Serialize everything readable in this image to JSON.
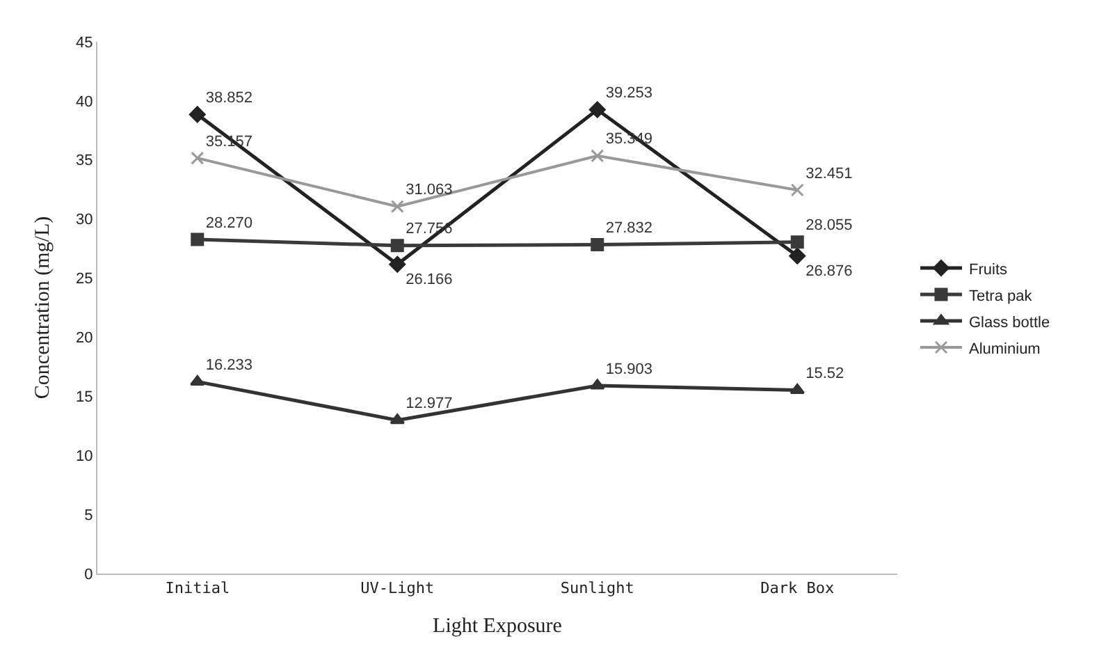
{
  "chart_data": {
    "type": "line",
    "xlabel": "Light Exposure",
    "ylabel": "Concentration (mg/L)",
    "categories": [
      "Initial",
      "UV-Light",
      "Sunlight",
      "Dark Box"
    ],
    "series": [
      {
        "name": "Fruits",
        "color": "#222222",
        "marker": "diamond",
        "values": [
          38.852,
          26.166,
          39.253,
          26.876
        ],
        "value_labels": [
          "38.852",
          "26.166",
          "39.253",
          "26.876"
        ]
      },
      {
        "name": "Tetra pak",
        "color": "#3a3a3a",
        "marker": "square",
        "values": [
          28.27,
          27.756,
          27.832,
          28.055
        ],
        "value_labels": [
          "28.270",
          "27.756",
          "27.832",
          "28.055"
        ]
      },
      {
        "name": "Glass bottle",
        "color": "#333333",
        "marker": "triangle",
        "values": [
          16.233,
          12.977,
          15.903,
          15.52
        ],
        "value_labels": [
          "16.233",
          "12.977",
          "15.903",
          "15.52"
        ]
      },
      {
        "name": "Aluminium",
        "color": "#999999",
        "marker": "cross",
        "values": [
          35.157,
          31.063,
          35.349,
          32.451
        ],
        "value_labels": [
          "35.157",
          "31.063",
          "35.349",
          "32.451"
        ]
      }
    ],
    "ylim": [
      0,
      45
    ],
    "yticks": [
      0,
      5,
      10,
      15,
      20,
      25,
      30,
      35,
      40,
      45
    ],
    "legend": "right",
    "line_style": "solid"
  }
}
